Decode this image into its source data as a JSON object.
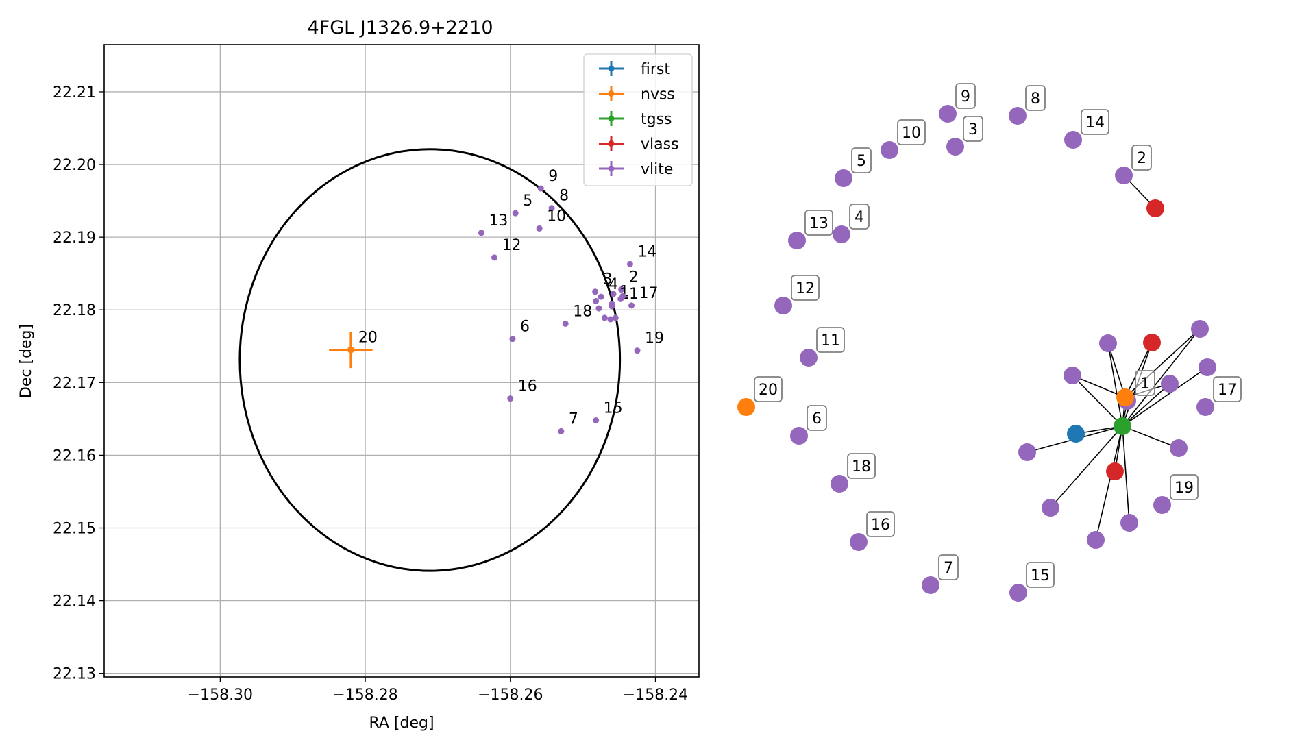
{
  "chart_data": [
    {
      "type": "scatter",
      "title": "4FGL J1326.9+2210",
      "xlabel": "RA [deg]",
      "ylabel": "Dec [deg]",
      "xlim": [
        -158.316,
        -158.234
      ],
      "ylim": [
        22.1295,
        22.2165
      ],
      "xticks": [
        -158.3,
        -158.28,
        -158.26,
        -158.24
      ],
      "xtick_labels": [
        "−158.30",
        "−158.28",
        "−158.26",
        "−158.24"
      ],
      "yticks": [
        22.13,
        22.14,
        22.15,
        22.16,
        22.17,
        22.18,
        22.19,
        22.2,
        22.21
      ],
      "ytick_labels": [
        "22.13",
        "22.14",
        "22.15",
        "22.16",
        "22.17",
        "22.18",
        "22.19",
        "22.20",
        "22.21"
      ],
      "grid": true,
      "legend_position": "top-right",
      "colors": {
        "first": "#1f77b4",
        "nvss": "#ff7f0e",
        "tgss": "#2ca02c",
        "vlass": "#d62728",
        "vlite": "#9467bd"
      },
      "legend": [
        "first",
        "nvss",
        "tgss",
        "vlass",
        "vlite"
      ],
      "ellipse": {
        "center": [
          -158.2711,
          22.1731
        ],
        "half_width_deg": 0.0262,
        "half_height_deg": 0.029
      },
      "series": [
        {
          "name": "nvss",
          "points": [
            {
              "label": "20",
              "ra": -158.282,
              "dec": 22.1745,
              "err_ra": 0.003,
              "err_dec": 0.0025
            }
          ]
        },
        {
          "name": "vlite",
          "points": [
            {
              "label": "9",
              "ra": -158.2558,
              "dec": 22.1967
            },
            {
              "label": "8",
              "ra": -158.2543,
              "dec": 22.194
            },
            {
              "label": "5",
              "ra": -158.2593,
              "dec": 22.1933
            },
            {
              "label": "10",
              "ra": -158.256,
              "dec": 22.1912
            },
            {
              "label": "13",
              "ra": -158.264,
              "dec": 22.1906
            },
            {
              "label": "12",
              "ra": -158.2622,
              "dec": 22.1872
            },
            {
              "label": "14",
              "ra": -158.2435,
              "dec": 22.1863
            },
            {
              "label": "3",
              "ra": -158.2483,
              "dec": 22.1825
            },
            {
              "label": "4",
              "ra": -158.2475,
              "dec": 22.1818
            },
            {
              "label": "2",
              "ra": -158.2447,
              "dec": 22.1828
            },
            {
              "label": "1",
              "ra": -158.246,
              "dec": 22.1808
            },
            {
              "label": "11",
              "ra": -158.246,
              "dec": 22.1805
            },
            {
              "label": "17",
              "ra": -158.2433,
              "dec": 22.1806
            },
            {
              "label": "18",
              "ra": -158.2524,
              "dec": 22.1781
            },
            {
              "label": "6",
              "ra": -158.2597,
              "dec": 22.176
            },
            {
              "label": "19",
              "ra": -158.2425,
              "dec": 22.1744
            },
            {
              "label": "16",
              "ra": -158.26,
              "dec": 22.1678
            },
            {
              "label": "7",
              "ra": -158.253,
              "dec": 22.1633
            },
            {
              "label": "15",
              "ra": -158.2482,
              "dec": 22.1648
            },
            {
              "label": "",
              "ra": -158.2482,
              "dec": 22.1812
            },
            {
              "label": "",
              "ra": -158.2478,
              "dec": 22.1802
            },
            {
              "label": "",
              "ra": -158.247,
              "dec": 22.1789
            },
            {
              "label": "",
              "ra": -158.2462,
              "dec": 22.1787
            },
            {
              "label": "",
              "ra": -158.2455,
              "dec": 22.1789
            },
            {
              "label": "",
              "ra": -158.2448,
              "dec": 22.1815
            },
            {
              "label": "",
              "ra": -158.2445,
              "dec": 22.1819
            },
            {
              "label": "",
              "ra": -158.2458,
              "dec": 22.1822
            }
          ]
        }
      ]
    },
    {
      "type": "network",
      "nodes": [
        {
          "id": "9",
          "color": "vlite",
          "label": "9"
        },
        {
          "id": "8",
          "color": "vlite",
          "label": "8"
        },
        {
          "id": "14",
          "color": "vlite",
          "label": "14"
        },
        {
          "id": "10",
          "color": "vlite",
          "label": "10"
        },
        {
          "id": "3",
          "color": "vlite",
          "label": "3"
        },
        {
          "id": "5",
          "color": "vlite",
          "label": "5"
        },
        {
          "id": "2",
          "color": "vlite",
          "label": "2"
        },
        {
          "id": "2v",
          "color": "vlass",
          "label": ""
        },
        {
          "id": "13",
          "color": "vlite",
          "label": "13"
        },
        {
          "id": "4",
          "color": "vlite",
          "label": "4"
        },
        {
          "id": "12",
          "color": "vlite",
          "label": "12"
        },
        {
          "id": "11",
          "color": "vlite",
          "label": "11"
        },
        {
          "id": "20",
          "color": "nvss",
          "label": "20"
        },
        {
          "id": "6",
          "color": "vlite",
          "label": "6"
        },
        {
          "id": "18",
          "color": "vlite",
          "label": "18"
        },
        {
          "id": "16",
          "color": "vlite",
          "label": "16"
        },
        {
          "id": "7",
          "color": "vlite",
          "label": "7"
        },
        {
          "id": "15",
          "color": "vlite",
          "label": "15"
        },
        {
          "id": "19",
          "color": "vlite",
          "label": "19"
        },
        {
          "id": "17",
          "color": "vlite",
          "label": "17"
        },
        {
          "id": "1",
          "color": "vlite",
          "label": "1"
        },
        {
          "id": "c_tgss",
          "color": "tgss",
          "label": ""
        },
        {
          "id": "c_nvss",
          "color": "nvss",
          "label": ""
        },
        {
          "id": "c_first",
          "color": "first",
          "label": ""
        },
        {
          "id": "c_vlass_a",
          "color": "vlass",
          "label": ""
        },
        {
          "id": "c_vlass_b",
          "color": "vlass",
          "label": ""
        },
        {
          "id": "p1",
          "color": "vlite",
          "label": ""
        },
        {
          "id": "p2",
          "color": "vlite",
          "label": ""
        },
        {
          "id": "p3",
          "color": "vlite",
          "label": ""
        },
        {
          "id": "p4",
          "color": "vlite",
          "label": ""
        },
        {
          "id": "p5",
          "color": "vlite",
          "label": ""
        },
        {
          "id": "p6",
          "color": "vlite",
          "label": ""
        },
        {
          "id": "p7",
          "color": "vlite",
          "label": ""
        },
        {
          "id": "p8",
          "color": "vlite",
          "label": ""
        },
        {
          "id": "p9",
          "color": "vlite",
          "label": ""
        },
        {
          "id": "p10",
          "color": "vlite",
          "label": ""
        }
      ],
      "edges": [
        [
          "2",
          "2v"
        ],
        [
          "c_tgss",
          "c_nvss"
        ],
        [
          "c_tgss",
          "c_first"
        ],
        [
          "c_tgss",
          "c_vlass_a"
        ],
        [
          "c_tgss",
          "c_vlass_b"
        ],
        [
          "c_tgss",
          "p1"
        ],
        [
          "c_tgss",
          "p2"
        ],
        [
          "c_tgss",
          "p3"
        ],
        [
          "c_tgss",
          "p4"
        ],
        [
          "c_tgss",
          "p5"
        ],
        [
          "c_tgss",
          "p6"
        ],
        [
          "c_tgss",
          "p7"
        ],
        [
          "c_tgss",
          "p8"
        ],
        [
          "c_tgss",
          "p9"
        ],
        [
          "c_tgss",
          "p10"
        ],
        [
          "c_tgss",
          "1"
        ],
        [
          "c_nvss",
          "p1"
        ],
        [
          "c_nvss",
          "p2"
        ],
        [
          "c_nvss",
          "p3"
        ],
        [
          "c_nvss",
          "c_vlass_a"
        ],
        [
          "c_nvss",
          "p4"
        ],
        [
          "c_nvss",
          "1"
        ]
      ]
    }
  ]
}
